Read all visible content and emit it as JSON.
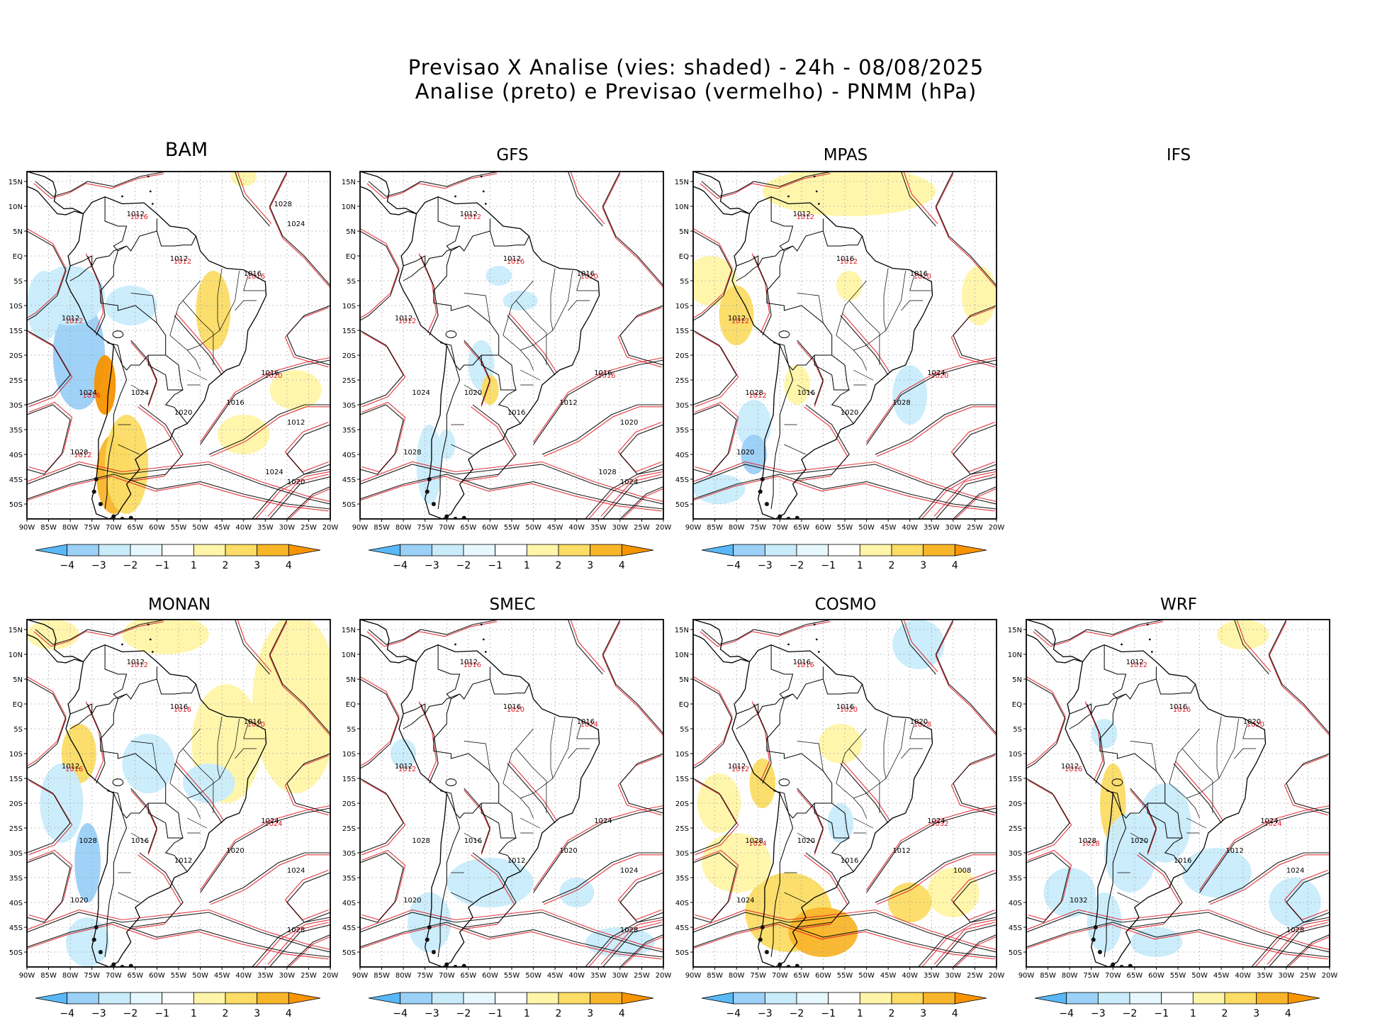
{
  "title": {
    "line1": "Previsao X Analise (vies: shaded) - 24h - 08/08/2025",
    "line2": "Analise (preto) e Previsao (vermelho) - PNMM (hPa)"
  },
  "lat_labels": [
    "15N",
    "10N",
    "5N",
    "EQ",
    "5S",
    "10S",
    "15S",
    "20S",
    "25S",
    "30S",
    "35S",
    "40S",
    "45S",
    "50S"
  ],
  "lon_labels": [
    "90W",
    "85W",
    "80W",
    "75W",
    "70W",
    "65W",
    "60W",
    "55W",
    "50W",
    "45W",
    "40W",
    "35W",
    "30W",
    "25W",
    "20W"
  ],
  "colorbar": {
    "labels": [
      "-4",
      "-3",
      "-2",
      "-1",
      "1",
      "2",
      "3",
      "4"
    ],
    "colors": [
      "#59b8f5",
      "#9bd0f7",
      "#c9ecfb",
      "#e6f8fd",
      "#ffffff",
      "#fff5a8",
      "#fbdc64",
      "#f9b52a",
      "#f79400"
    ]
  },
  "colors": {
    "analysis": "#000000",
    "forecast": "#e0202a",
    "grid": "#9a9a9a"
  },
  "panels": [
    {
      "id": "bam",
      "name": "BAM",
      "has_map": true,
      "labels_black": [
        "1012",
        "1012",
        "1012",
        "1016",
        "1016",
        "1024",
        "1028",
        "1024",
        "1020",
        "1016",
        "1012",
        "1020",
        "1024",
        "1028",
        "1024"
      ],
      "labels_red": [
        "1012",
        "1016",
        "1012",
        "1016",
        "1020",
        "1016",
        "1012"
      ]
    },
    {
      "id": "gfs",
      "name": "GFS",
      "has_map": true,
      "labels_black": [
        "1012",
        "1012",
        "1012",
        "1016",
        "1016",
        "1024",
        "1028",
        "1020",
        "1016",
        "1012",
        "1020",
        "1024",
        "1028"
      ],
      "labels_red": [
        "1012",
        "1012",
        "1016",
        "1020",
        "1016"
      ]
    },
    {
      "id": "mpas",
      "name": "MPAS",
      "has_map": true,
      "labels_black": [
        "1012",
        "1012",
        "1016",
        "1016",
        "1024",
        "1028",
        "1020",
        "1016",
        "1020",
        "1028"
      ],
      "labels_red": [
        "1012",
        "1012",
        "1012",
        "1020",
        "1020",
        "1012"
      ]
    },
    {
      "id": "ifs",
      "name": "IFS",
      "has_map": false,
      "labels_black": [],
      "labels_red": []
    },
    {
      "id": "monan",
      "name": "MONAN",
      "has_map": true,
      "labels_black": [
        "1012",
        "1012",
        "1016",
        "1016",
        "1024",
        "1028",
        "1020",
        "1016",
        "1012",
        "1020",
        "1024",
        "1028"
      ],
      "labels_red": [
        "1016",
        "1012",
        "1016",
        "1020",
        "1024"
      ]
    },
    {
      "id": "smec",
      "name": "SMEC",
      "has_map": true,
      "labels_black": [
        "1012",
        "1012",
        "1016",
        "1016",
        "1024",
        "1028",
        "1020",
        "1016",
        "1012",
        "1020",
        "1024",
        "1028"
      ],
      "labels_red": [
        "1012",
        "1016",
        "1020",
        "1024"
      ]
    },
    {
      "id": "cosmo",
      "name": "COSMO",
      "has_map": true,
      "labels_black": [
        "1012",
        "1016",
        "1016",
        "1020",
        "1024",
        "1028",
        "1024",
        "1020",
        "1016",
        "1012",
        "1008"
      ],
      "labels_red": [
        "1012",
        "1016",
        "1020",
        "1028",
        "1032",
        "1024"
      ]
    },
    {
      "id": "wrf",
      "name": "WRF",
      "has_map": true,
      "labels_black": [
        "1012",
        "1012",
        "1016",
        "1020",
        "1024",
        "1028",
        "1032",
        "1020",
        "1016",
        "1012",
        "1024",
        "1028"
      ],
      "labels_red": [
        "1016",
        "1012",
        "1016",
        "1020",
        "1024",
        "1028"
      ]
    }
  ]
}
